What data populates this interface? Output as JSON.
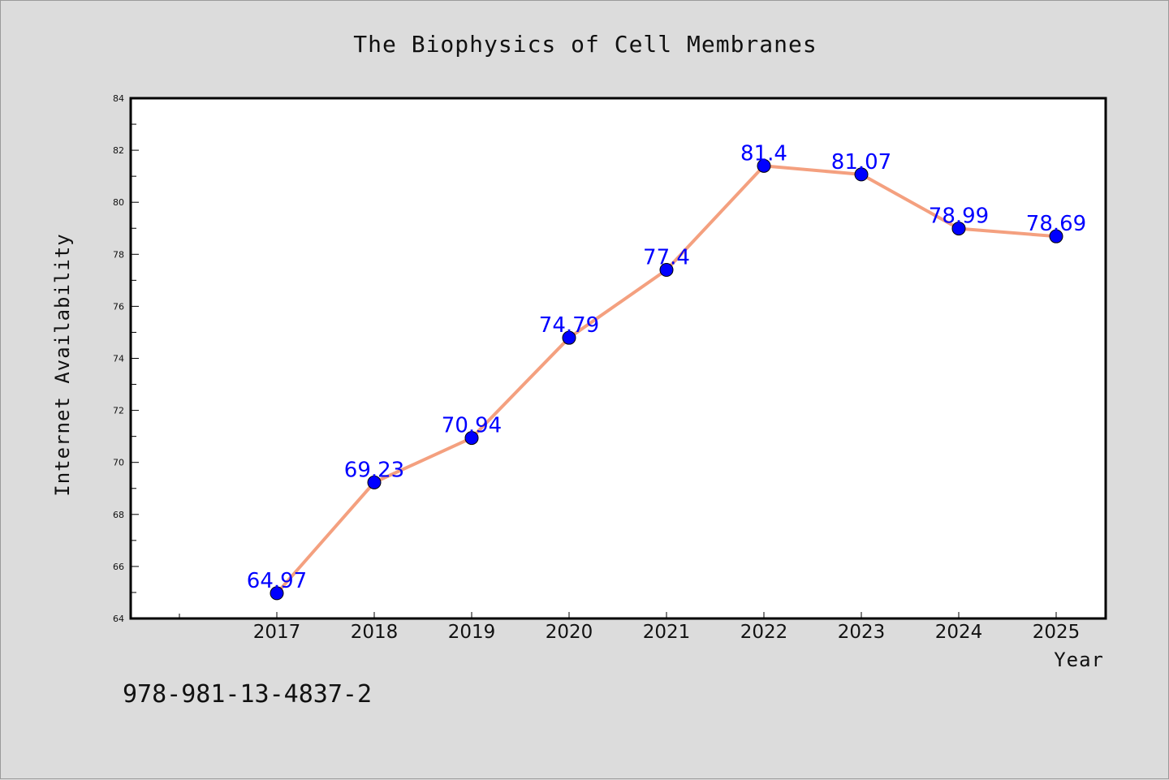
{
  "chart_data": {
    "type": "line",
    "title": "The Biophysics of Cell Membranes",
    "xlabel": "Year",
    "ylabel": "Internet Availability",
    "x": [
      "2017",
      "2018",
      "2019",
      "2020",
      "2021",
      "2022",
      "2023",
      "2024",
      "2025"
    ],
    "series": [
      {
        "values": [
          64.97,
          69.23,
          70.94,
          74.79,
          77.4,
          81.4,
          81.07,
          78.99,
          78.69
        ],
        "data_labels": [
          "64.97",
          "69.23",
          "70.94",
          "74.79",
          "77.4",
          "81.4",
          "81.07",
          "78.99",
          "78.69"
        ],
        "line_color": "#f4a07f",
        "marker_color": "#0000ff"
      }
    ],
    "ylim": [
      64,
      84
    ],
    "yticks": [
      "64",
      "66",
      "68",
      "70",
      "72",
      "74",
      "76",
      "78",
      "80",
      "82",
      "84"
    ],
    "grid": false,
    "legend": "none"
  },
  "footer": {
    "isbn": "978-981-13-4837-2"
  },
  "colors": {
    "background": "#dcdcdc",
    "plot_background": "#ffffff",
    "data_label": "#0000ff"
  }
}
